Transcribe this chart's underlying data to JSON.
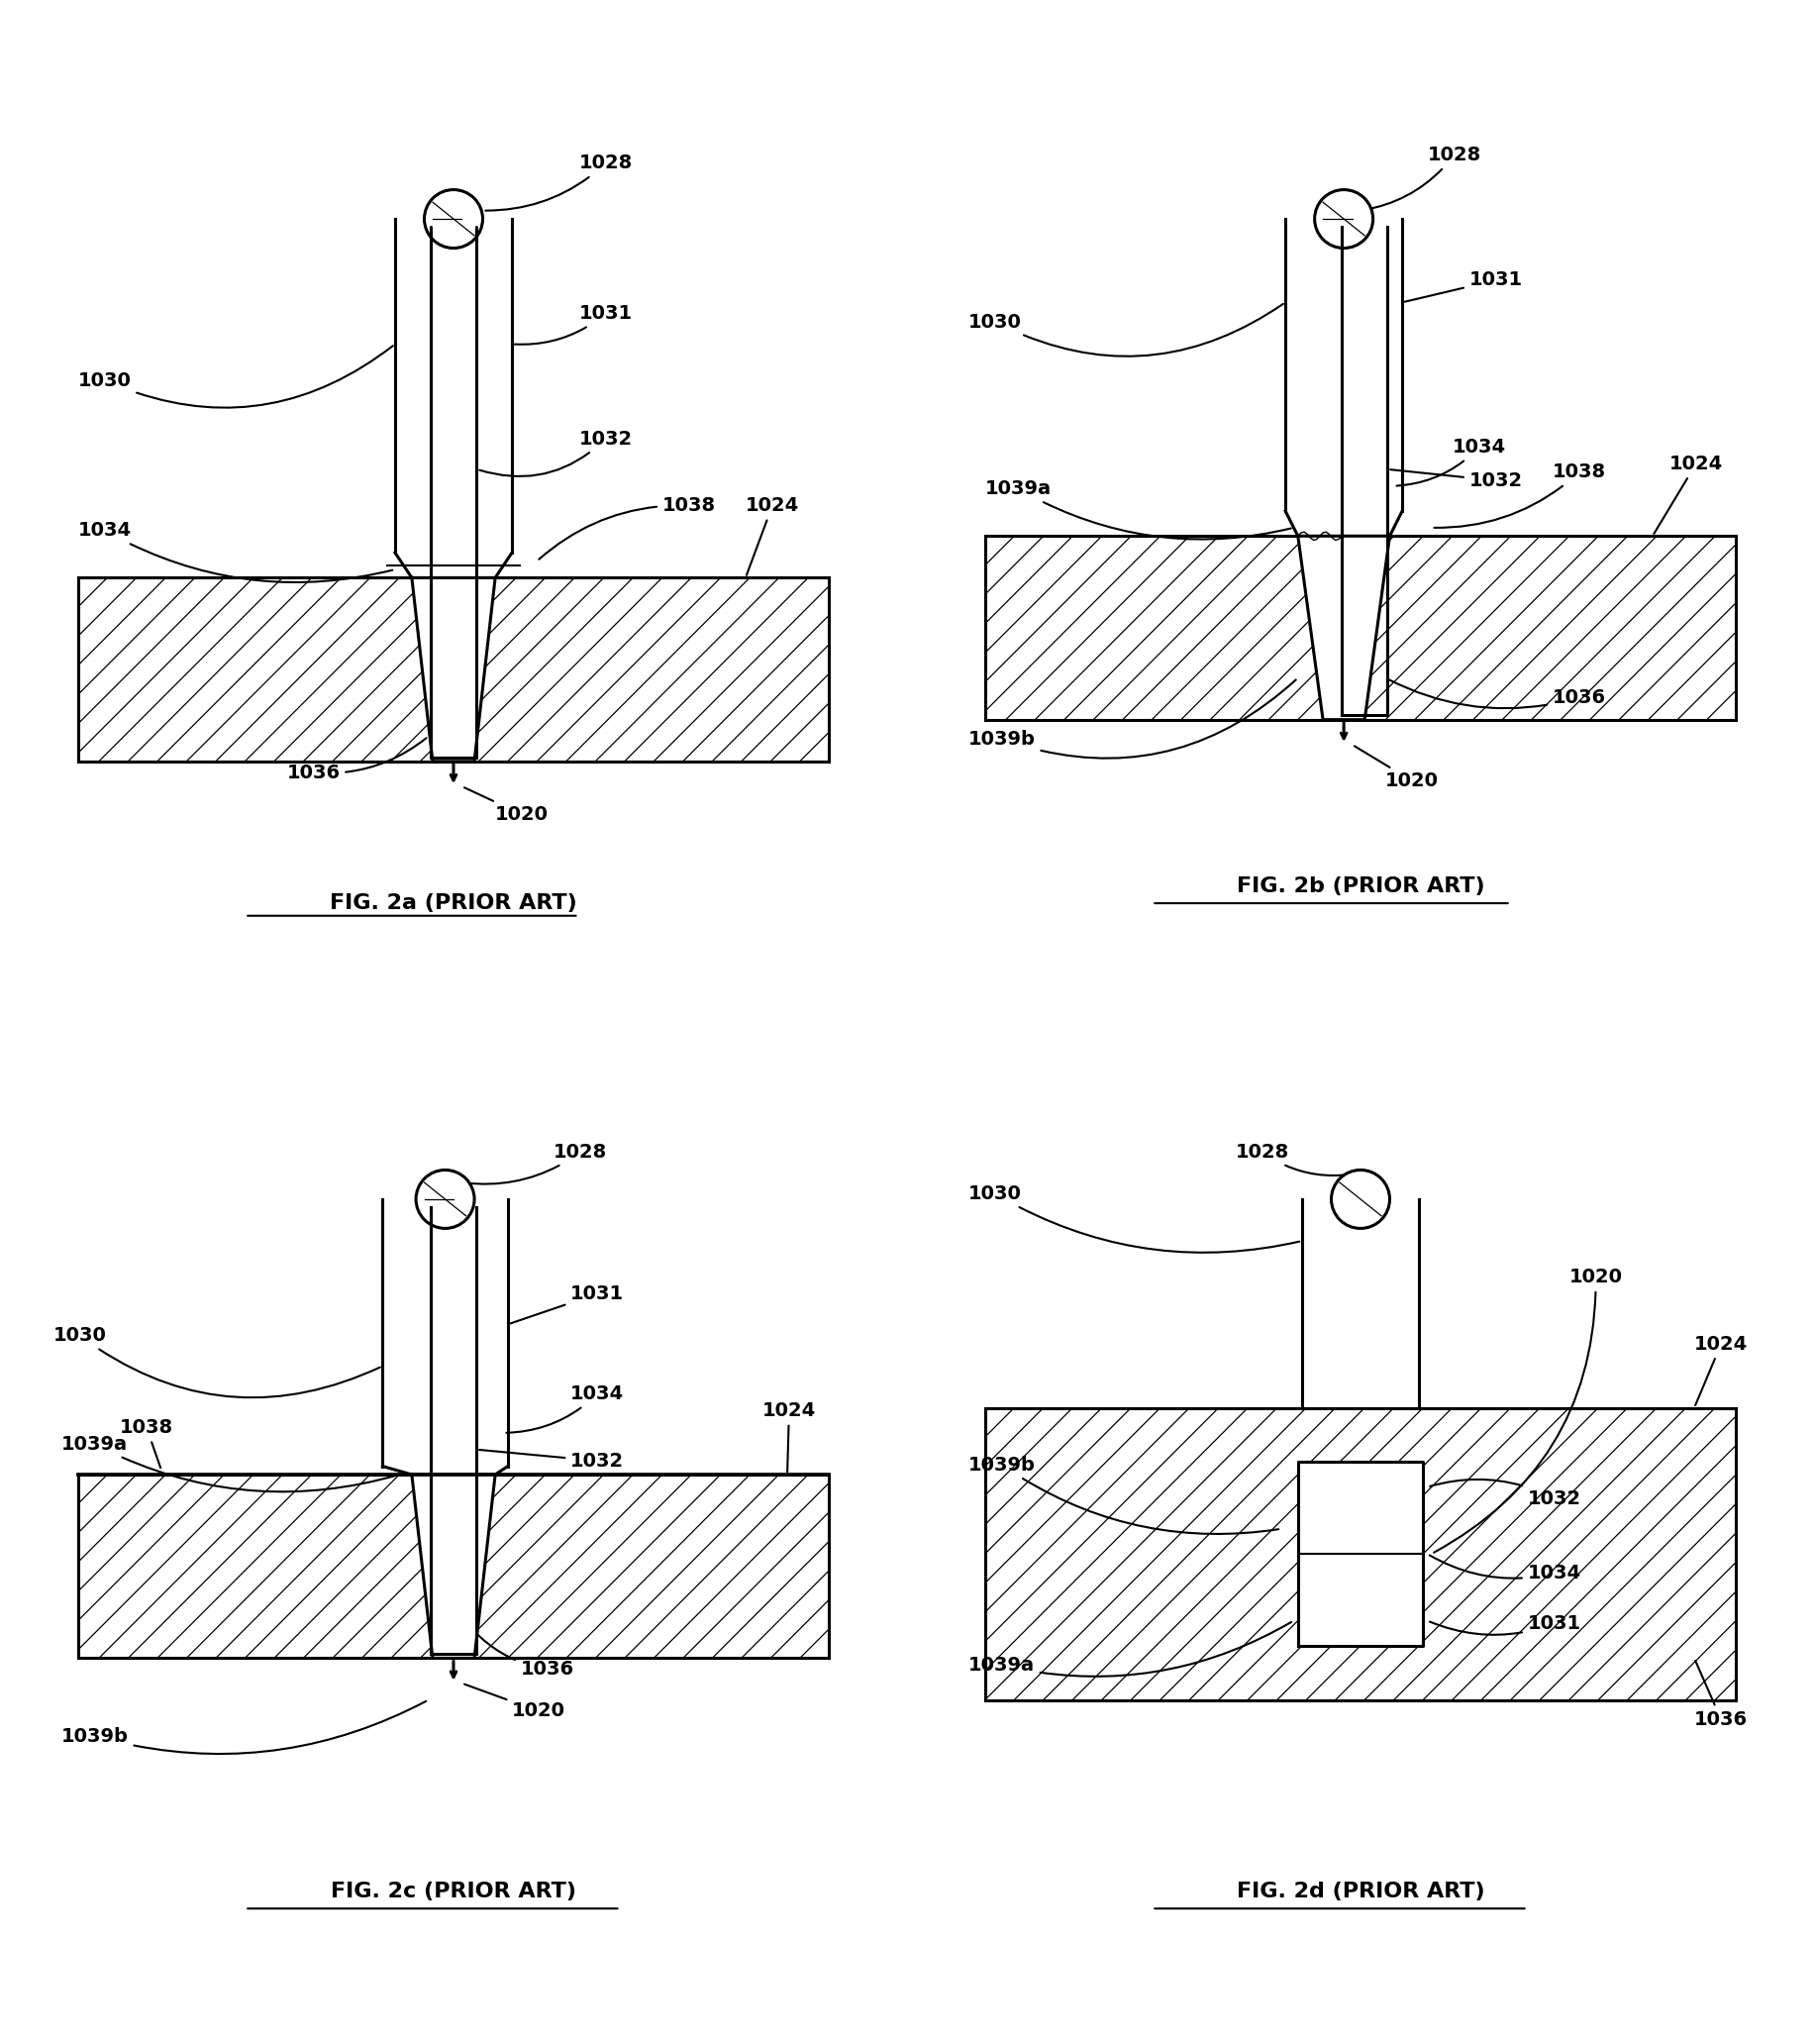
{
  "fig_labels": [
    "FIG. 2a (PRIOR ART)",
    "FIG. 2b (PRIOR ART)",
    "FIG. 2c (PRIOR ART)",
    "FIG. 2d (PRIOR ART)"
  ],
  "background": "#ffffff",
  "line_color": "#000000",
  "hatch_color": "#000000",
  "lw": 2.2,
  "text_color": "#000000"
}
